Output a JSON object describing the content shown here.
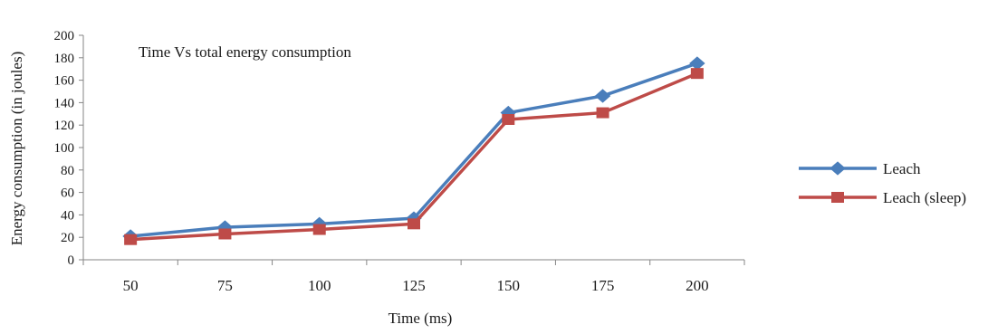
{
  "chart_data": {
    "type": "line",
    "title": "Time Vs total energy consumption",
    "xlabel": "Time (ms)",
    "ylabel": "Energy  consumption  (in joules)",
    "categories": [
      "50",
      "75",
      "100",
      "125",
      "150",
      "175",
      "200"
    ],
    "ylim": [
      0,
      200
    ],
    "yticks": [
      0,
      20,
      40,
      60,
      80,
      100,
      120,
      140,
      160,
      180,
      200
    ],
    "grid": false,
    "legend_position": "right",
    "series": [
      {
        "name": "Leach",
        "values": [
          21,
          29,
          32,
          37,
          131,
          146,
          175
        ],
        "color": "#4a7ebb",
        "marker": "diamond"
      },
      {
        "name": "Leach (sleep)",
        "values": [
          18,
          23,
          27,
          32,
          125,
          131,
          166
        ],
        "color": "#be4b48",
        "marker": "square"
      }
    ]
  }
}
